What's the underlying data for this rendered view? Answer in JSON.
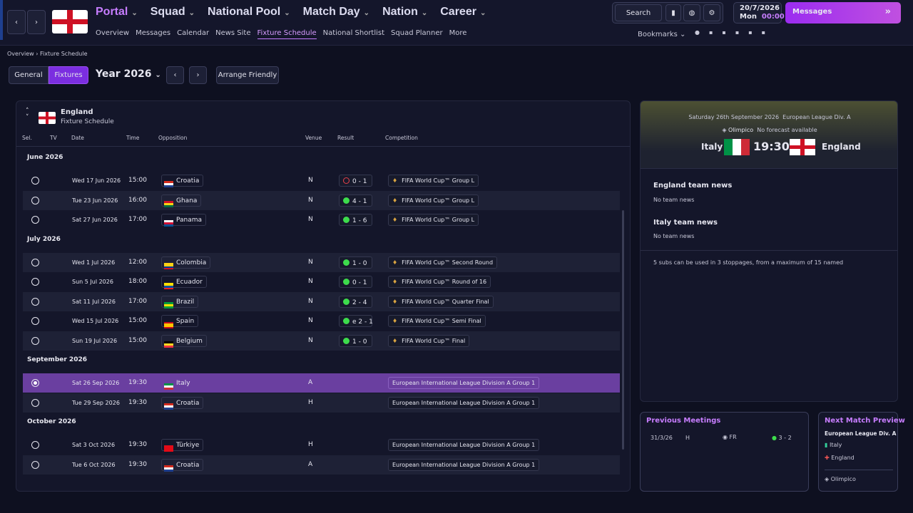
{
  "nav": {
    "tabs": [
      "Portal",
      "Squad",
      "National Pool",
      "Match Day",
      "Nation",
      "Career"
    ],
    "subnav": [
      "Overview",
      "Messages",
      "Calendar",
      "News Site",
      "Fixture Schedule",
      "National Shortlist",
      "Squad Planner",
      "More"
    ],
    "search": "Search",
    "date": "20/7/2026",
    "day": "Mon",
    "time": "00:00",
    "messages": "Messages",
    "bookmarks": "Bookmarks"
  },
  "breadcrumb": [
    "Overview",
    "Fixture Schedule"
  ],
  "toolbar": {
    "tabs": [
      "General",
      "Fixtures"
    ],
    "year": "Year 2026",
    "arrange": "Arrange Friendly"
  },
  "schedule": {
    "team": "England",
    "subtitle": "Fixture Schedule",
    "columns": [
      "Sel.",
      "TV",
      "Date",
      "Time",
      "Opposition",
      "Venue",
      "Result",
      "Competition"
    ],
    "groups": [
      {
        "month": "June 2026",
        "fixtures": [
          {
            "date": "Wed 17 Jun 2026",
            "time": "15:00",
            "opposition": "Croatia",
            "flag": [
              "#d52b1e",
              "#ffffff",
              "#1e3f8f"
            ],
            "venue": "N",
            "result": "0 - 1",
            "result_color": "#e8414a",
            "competition": "FIFA World Cup™ Group L"
          },
          {
            "date": "Tue 23 Jun 2026",
            "time": "16:00",
            "opposition": "Ghana",
            "flag": [
              "#ce1126",
              "#fcd116",
              "#006b3f"
            ],
            "venue": "N",
            "result": "4 - 1",
            "result_color": "#3ddc4c",
            "competition": "FIFA World Cup™ Group L"
          },
          {
            "date": "Sat 27 Jun 2026",
            "time": "17:00",
            "opposition": "Panama",
            "flag": [
              "#ffffff",
              "#d21034",
              "#005293"
            ],
            "venue": "N",
            "result": "1 - 6",
            "result_color": "#3ddc4c",
            "competition": "FIFA World Cup™ Group L"
          }
        ]
      },
      {
        "month": "July 2026",
        "fixtures": [
          {
            "date": "Wed 1 Jul 2026",
            "time": "12:00",
            "opposition": "Colombia",
            "flag": [
              "#fcd116",
              "#fcd116",
              "#003893",
              "#ce1126"
            ],
            "venue": "N",
            "result": "1 - 0",
            "result_color": "#3ddc4c",
            "competition": "FIFA World Cup™ Second Round"
          },
          {
            "date": "Sun 5 Jul 2026",
            "time": "18:00",
            "opposition": "Ecuador",
            "flag": [
              "#ffdd00",
              "#ffdd00",
              "#034ea2",
              "#ed1c24"
            ],
            "venue": "N",
            "result": "0 - 1",
            "result_color": "#3ddc4c",
            "competition": "FIFA World Cup™ Round of 16"
          },
          {
            "date": "Sat 11 Jul 2026",
            "time": "17:00",
            "opposition": "Brazil",
            "flag": [
              "#009c3b",
              "#ffdf00",
              "#009c3b"
            ],
            "venue": "N",
            "result": "2 - 4",
            "result_color": "#3ddc4c",
            "competition": "FIFA World Cup™ Quarter Final"
          },
          {
            "date": "Wed 15 Jul 2026",
            "time": "15:00",
            "opposition": "Spain",
            "flag": [
              "#c60b1e",
              "#ffc400",
              "#ffc400",
              "#c60b1e"
            ],
            "venue": "N",
            "result": "e 2 - 1",
            "result_color": "#3ddc4c",
            "competition": "FIFA World Cup™ Semi Final"
          },
          {
            "date": "Sun 19 Jul 2026",
            "time": "15:00",
            "opposition": "Belgium",
            "flag": [
              "#000000",
              "#fdda24",
              "#ef3340"
            ],
            "venue": "N",
            "result": "1 - 0",
            "result_color": "#3ddc4c",
            "competition": "FIFA World Cup™ Final"
          }
        ]
      },
      {
        "month": "September 2026",
        "fixtures": [
          {
            "date": "Sat 26 Sep 2026",
            "time": "19:30",
            "opposition": "Italy",
            "flag": [
              "#009246",
              "#ffffff",
              "#ce2b37"
            ],
            "venue": "A",
            "competition": "European International League Division A Group 1",
            "selected": true
          },
          {
            "date": "Tue 29 Sep 2026",
            "time": "19:30",
            "opposition": "Croatia",
            "flag": [
              "#d52b1e",
              "#ffffff",
              "#1e3f8f"
            ],
            "venue": "H",
            "competition": "European International League Division A Group 1"
          }
        ]
      },
      {
        "month": "October 2026",
        "fixtures": [
          {
            "date": "Sat 3 Oct 2026",
            "time": "19:30",
            "opposition": "Türkiye",
            "flag": [
              "#e30a17",
              "#e30a17",
              "#e30a17"
            ],
            "venue": "H",
            "competition": "European International League Division A Group 1"
          },
          {
            "date": "Tue 6 Oct 2026",
            "time": "19:30",
            "opposition": "Croatia",
            "flag": [
              "#d52b1e",
              "#ffffff",
              "#1e3f8f"
            ],
            "venue": "A",
            "competition": "European International League Division A Group 1"
          }
        ]
      }
    ]
  },
  "match": {
    "date": "Saturday 26th September 2026",
    "competition": "European League Div. A",
    "stadium": "Olimpico",
    "weather": "No forecast available",
    "home": "Italy",
    "kickoff": "19:30",
    "away": "England",
    "news": [
      {
        "title": "England team news",
        "text": "No team news"
      },
      {
        "title": "Italy team news",
        "text": "No team news"
      }
    ],
    "subs": "5 subs can be used in 3 stoppages, from a maximum of 15 named"
  },
  "previous_meetings": {
    "title": "Previous Meetings",
    "date": "31/3/26",
    "venue": "H",
    "type": "FR",
    "score": "3 - 2"
  },
  "next_preview": {
    "title": "Next Match Preview",
    "competition": "European League Div. A",
    "home": "Italy",
    "away": "England",
    "stadium": "Olimpico"
  }
}
